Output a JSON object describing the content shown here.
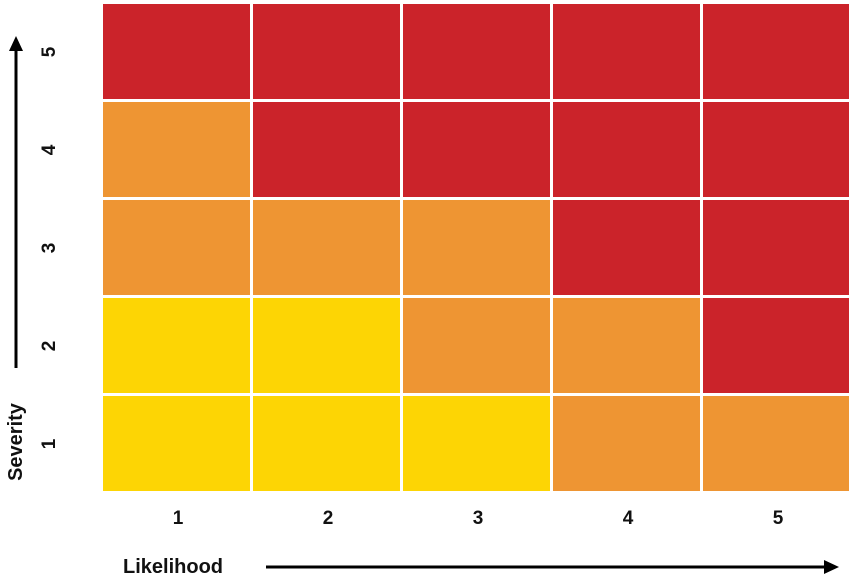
{
  "chart_data": {
    "type": "heatmap",
    "title": "",
    "xlabel": "Likelihood",
    "ylabel": "Severity",
    "x_categories": [
      "1",
      "2",
      "3",
      "4",
      "5"
    ],
    "y_categories": [
      "1",
      "2",
      "3",
      "4",
      "5"
    ],
    "levels": {
      "low": "#FDD504",
      "medium": "#EE9533",
      "high": "#CB232A"
    },
    "cells_by_severity": {
      "1": [
        "low",
        "low",
        "low",
        "medium",
        "medium"
      ],
      "2": [
        "low",
        "low",
        "medium",
        "medium",
        "high"
      ],
      "3": [
        "medium",
        "medium",
        "medium",
        "high",
        "high"
      ],
      "4": [
        "medium",
        "high",
        "high",
        "high",
        "high"
      ],
      "5": [
        "high",
        "high",
        "high",
        "high",
        "high"
      ]
    },
    "grid_line_color": "#ffffff",
    "legend": "none"
  }
}
